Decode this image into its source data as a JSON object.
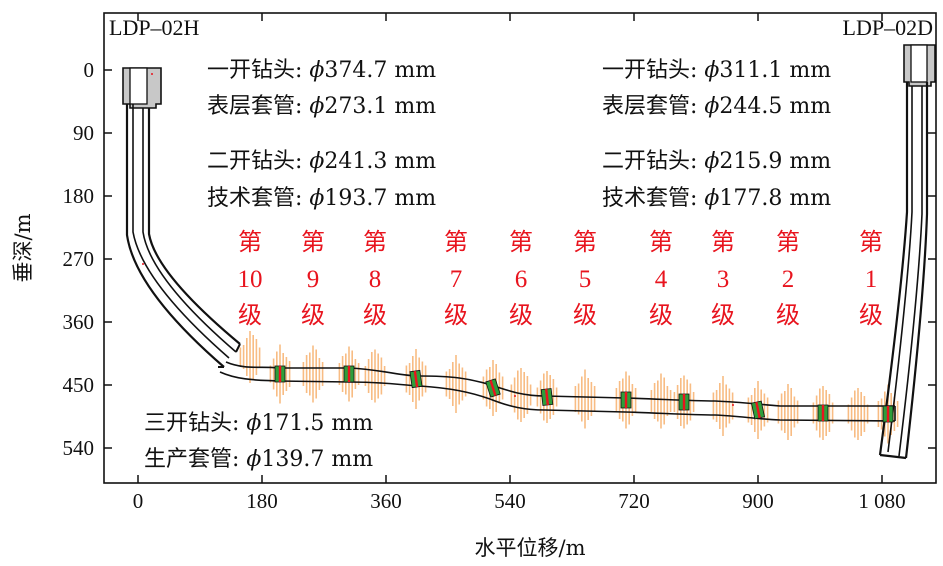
{
  "wells": {
    "left": "LDP–02H",
    "right": "LDP–02D"
  },
  "axes": {
    "y_title": "垂深/m",
    "x_title": "水平位移/m",
    "y_ticks": [
      "0",
      "90",
      "180",
      "270",
      "360",
      "450",
      "540"
    ],
    "x_ticks": [
      "0",
      "180",
      "360",
      "540",
      "720",
      "900",
      "1 080"
    ]
  },
  "specs_left": [
    {
      "label": "一开钻头: ",
      "sym": "ϕ",
      "value": "374.7 mm"
    },
    {
      "label": "表层套管: ",
      "sym": "ϕ",
      "value": "273.1 mm"
    },
    {
      "label": "二开钻头: ",
      "sym": "ϕ",
      "value": "241.3 mm"
    },
    {
      "label": "技术套管: ",
      "sym": "ϕ",
      "value": "193.7 mm"
    }
  ],
  "specs_right": [
    {
      "label": "一开钻头: ",
      "sym": "ϕ",
      "value": "311.1 mm"
    },
    {
      "label": "表层套管: ",
      "sym": "ϕ",
      "value": "244.5 mm"
    },
    {
      "label": "二开钻头: ",
      "sym": "ϕ",
      "value": "215.9 mm"
    },
    {
      "label": "技术套管: ",
      "sym": "ϕ",
      "value": "177.8 mm"
    }
  ],
  "specs_bottom": [
    {
      "label": "三开钻头: ",
      "sym": "ϕ",
      "value": "171.5 mm"
    },
    {
      "label": "生产套管: ",
      "sym": "ϕ",
      "value": "139.7 mm"
    }
  ],
  "stages": {
    "prefix": "第",
    "suffix": "级",
    "numbers": [
      "10",
      "9",
      "8",
      "7",
      "6",
      "5",
      "4",
      "3",
      "2",
      "1"
    ]
  },
  "colors": {
    "stage_text": "#e8141e",
    "fracture": "#f5a55a",
    "packer": "#2e9e3a",
    "casing_fill": "#c8c8c8",
    "line": "#111111"
  }
}
